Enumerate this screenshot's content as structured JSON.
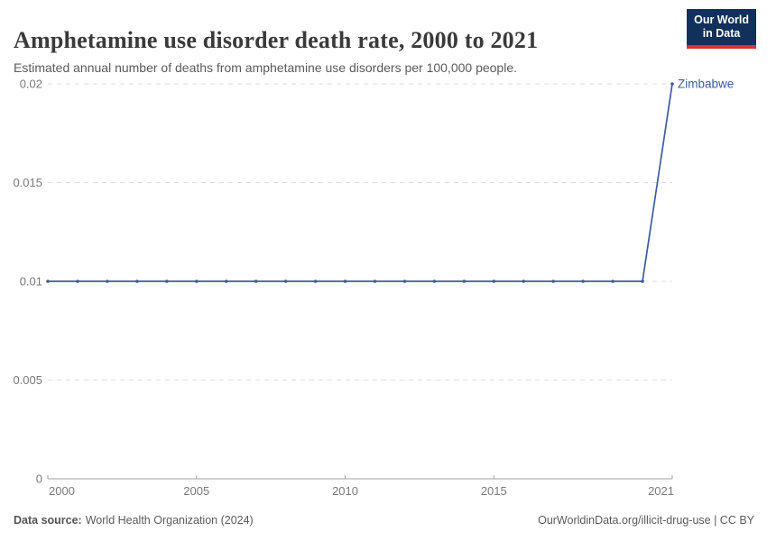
{
  "header": {
    "title": "Amphetamine use disorder death rate, 2000 to 2021",
    "subtitle": "Estimated annual number of deaths from amphetamine use disorders per 100,000 people.",
    "logo_line1": "Our World",
    "logo_line2": "in Data"
  },
  "chart_data": {
    "type": "line",
    "title": "Amphetamine use disorder death rate, 2000 to 2021",
    "series": [
      {
        "name": "Zimbabwe",
        "color": "#3c5ca2",
        "x": [
          2000,
          2001,
          2002,
          2003,
          2004,
          2005,
          2006,
          2007,
          2008,
          2009,
          2010,
          2011,
          2012,
          2013,
          2014,
          2015,
          2016,
          2017,
          2018,
          2019,
          2020,
          2021
        ],
        "values": [
          0.01,
          0.01,
          0.01,
          0.01,
          0.01,
          0.01,
          0.01,
          0.01,
          0.01,
          0.01,
          0.01,
          0.01,
          0.01,
          0.01,
          0.01,
          0.01,
          0.01,
          0.01,
          0.01,
          0.01,
          0.01,
          0.02
        ]
      }
    ],
    "xlim": [
      2000,
      2021
    ],
    "ylim": [
      0,
      0.02
    ],
    "x_ticks": [
      2000,
      2005,
      2010,
      2015,
      2021
    ],
    "y_ticks": [
      0,
      0.005,
      0.01,
      0.015,
      0.02
    ],
    "y_tick_labels": [
      "0",
      "0.005",
      "0.01",
      "0.015",
      "0.02"
    ],
    "grid": "horizontal-dashed",
    "legend_position": "end-of-line-label"
  },
  "footer": {
    "source_label": "Data source:",
    "source_value": "World Health Organization (2024)",
    "credit": "OurWorldinData.org/illicit-drug-use | CC BY"
  },
  "colors": {
    "line": "#3c5ca2",
    "grid": "#dedede",
    "axis": "#a1a1a1",
    "tick_text": "#7a7a7a",
    "logo_bg": "#12305c",
    "logo_accent": "#d2362c"
  }
}
